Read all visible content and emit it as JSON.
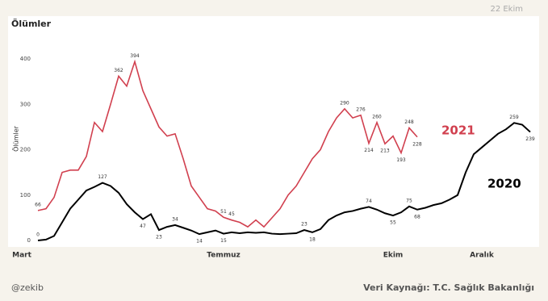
{
  "header": {
    "date": "22 Ekim"
  },
  "footer": {
    "author": "@zekib",
    "source": "Veri Kaynağı: T.C. Sağlık Bakanlığı"
  },
  "chart_data": {
    "type": "line",
    "title": "Ölümler",
    "y_label": "Ölümler",
    "categories": [
      null,
      "Mart",
      null,
      null,
      null,
      null,
      null,
      null,
      null,
      null,
      null,
      null,
      null,
      null,
      null,
      null,
      null,
      null,
      null,
      null,
      null,
      null,
      null,
      null,
      null,
      null,
      "Temmuz",
      null,
      null,
      null,
      null,
      null,
      null,
      null,
      null,
      null,
      null,
      null,
      null,
      null,
      null,
      null,
      null,
      null,
      null,
      null,
      null,
      "Ekim",
      null,
      null,
      null,
      null,
      null,
      null,
      null,
      null,
      null,
      null,
      "Aralık",
      null,
      null,
      null,
      null,
      null,
      null
    ],
    "series": [
      {
        "name": "2020",
        "color": "#000000",
        "values": [
          null,
          null,
          null,
          0,
          2,
          10,
          40,
          70,
          90,
          110,
          118,
          127,
          120,
          105,
          80,
          62,
          47,
          58,
          23,
          30,
          34,
          28,
          22,
          14,
          18,
          22,
          15,
          18,
          16,
          18,
          17,
          18,
          15,
          14,
          15,
          16,
          23,
          18,
          25,
          45,
          55,
          62,
          65,
          70,
          74,
          68,
          60,
          55,
          62,
          75,
          68,
          72,
          78,
          82,
          90,
          100,
          150,
          190,
          205,
          220,
          235,
          245,
          259,
          255,
          239
        ]
      },
      {
        "name": "2021",
        "color": "#d1404f",
        "values": [
          null,
          null,
          null,
          66,
          70,
          95,
          150,
          155,
          155,
          185,
          260,
          240,
          300,
          362,
          340,
          394,
          330,
          290,
          250,
          230,
          235,
          180,
          120,
          95,
          70,
          65,
          51,
          45,
          40,
          30,
          45,
          30,
          50,
          70,
          100,
          120,
          150,
          180,
          200,
          240,
          270,
          290,
          270,
          276,
          214,
          260,
          213,
          230,
          193,
          248,
          228,
          null,
          null,
          null,
          null,
          null,
          null,
          null,
          null,
          null,
          null,
          null,
          null,
          null,
          null
        ]
      }
    ],
    "ylim": [
      0,
      400
    ],
    "yticks": [
      0,
      100,
      200,
      300,
      400
    ],
    "grid": false
  }
}
